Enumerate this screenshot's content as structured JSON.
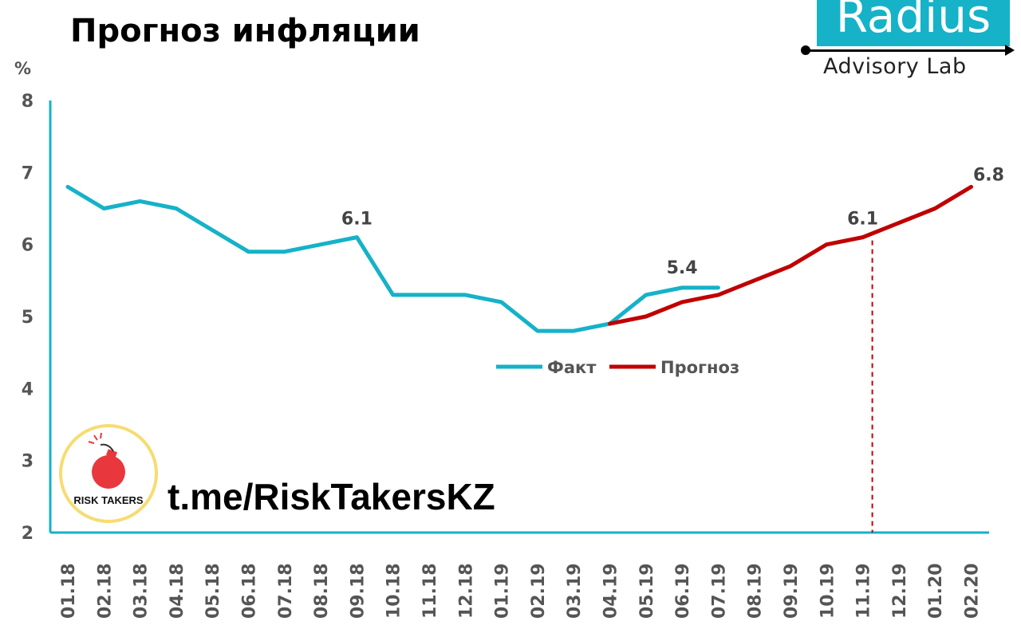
{
  "header": {
    "title": "Прогноз инфляции",
    "unit": "%"
  },
  "logo": {
    "name": "Radius",
    "subtitle": "Advisory Lab",
    "color": "#15b2c8"
  },
  "watermark": {
    "badge_text": "RISK TAKERS",
    "url": "t.me/RiskTakersKZ"
  },
  "chart_data": {
    "type": "line",
    "title": "Прогноз инфляции",
    "ylabel": "%",
    "ylim": [
      2,
      8
    ],
    "yticks": [
      "2",
      "3",
      "4",
      "5",
      "6",
      "7",
      "8"
    ],
    "categories": [
      "01.18",
      "02.18",
      "03.18",
      "04.18",
      "05.18",
      "06.18",
      "07.18",
      "08.18",
      "09.18",
      "10.18",
      "11.18",
      "12.18",
      "01.19",
      "02.19",
      "03.19",
      "04.19",
      "05.19",
      "06.19",
      "07.19",
      "08.19",
      "09.19",
      "10.19",
      "11.19",
      "12.19",
      "01.20",
      "02.20"
    ],
    "series": [
      {
        "name": "Факт",
        "color": "#15b2c8",
        "values": [
          6.8,
          6.5,
          6.6,
          6.5,
          6.2,
          5.9,
          5.9,
          6.0,
          6.1,
          5.3,
          5.3,
          5.3,
          5.2,
          4.8,
          4.8,
          4.9,
          5.3,
          5.4,
          5.4,
          null,
          null,
          null,
          null,
          null,
          null,
          null
        ]
      },
      {
        "name": "Прогноз",
        "color": "#c00000",
        "values": [
          null,
          null,
          null,
          null,
          null,
          null,
          null,
          null,
          null,
          null,
          null,
          null,
          null,
          null,
          null,
          4.9,
          5.0,
          5.2,
          5.3,
          5.5,
          5.7,
          6.0,
          6.1,
          6.3,
          6.5,
          6.8
        ]
      }
    ],
    "data_labels": [
      {
        "series": 0,
        "index": 8,
        "text": "6.1"
      },
      {
        "series": 0,
        "index": 17,
        "text": "5.4"
      },
      {
        "series": 1,
        "index": 22,
        "text": "6.1"
      },
      {
        "series": 1,
        "index": 25,
        "text": "6.8"
      }
    ],
    "marker_index": 22,
    "legend_position": "center-right",
    "grid": false
  }
}
